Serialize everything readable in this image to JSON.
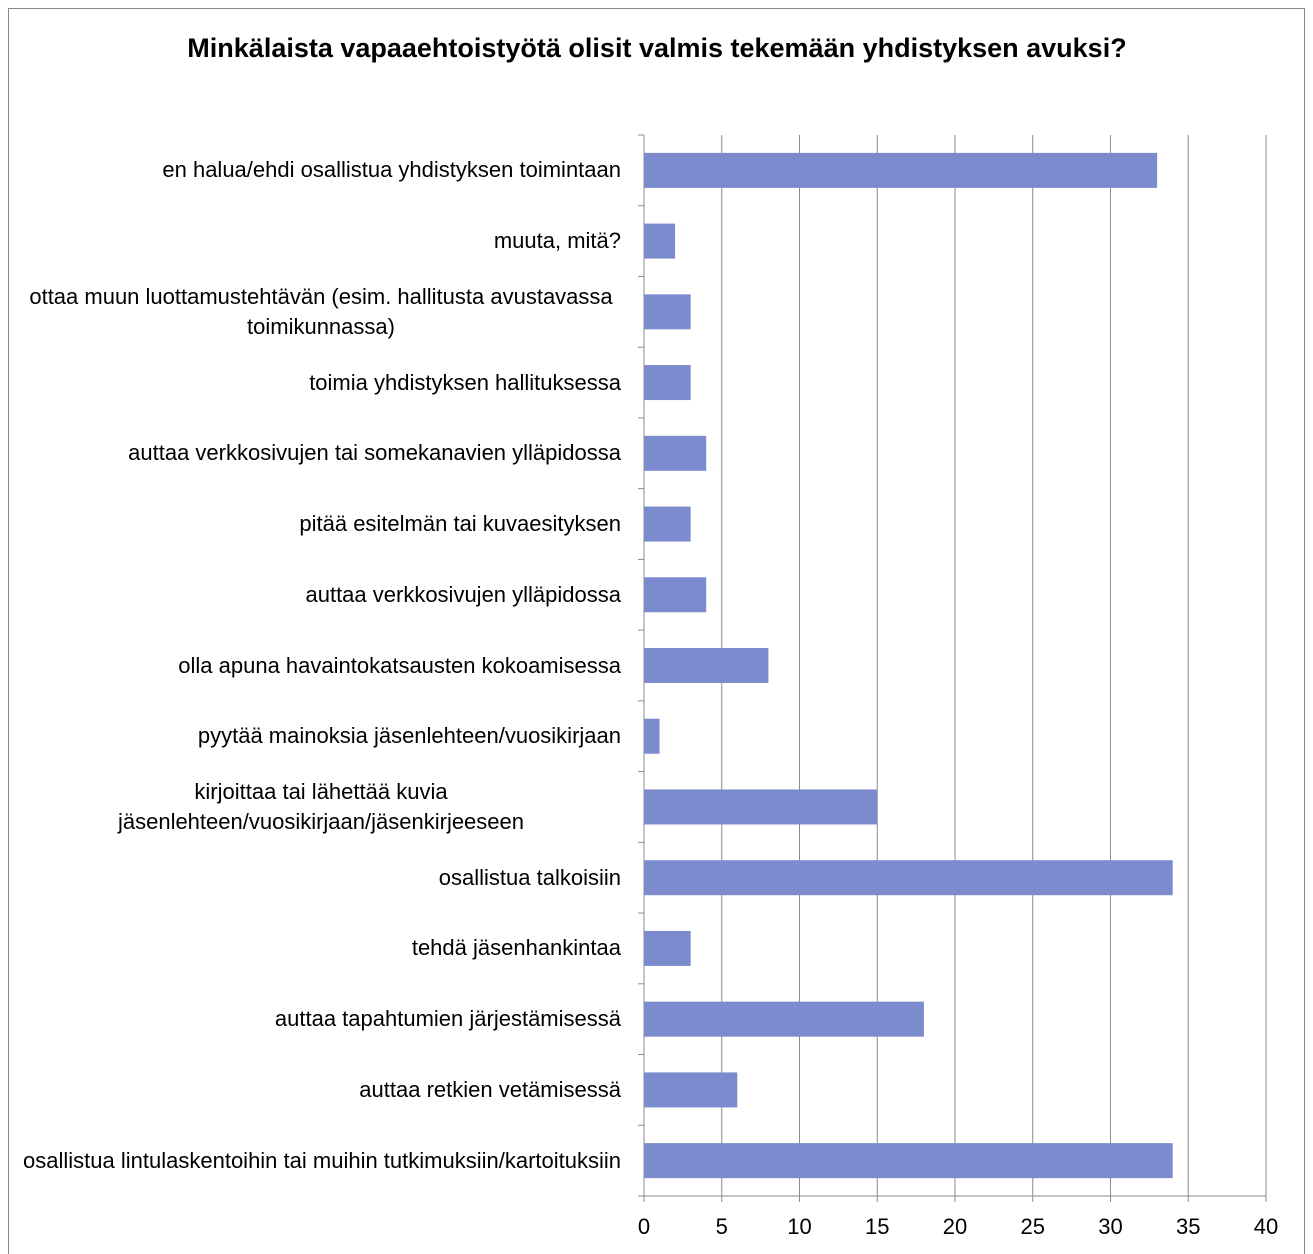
{
  "chart_data": {
    "type": "bar",
    "orientation": "horizontal",
    "title": "Minkälaista vapaaehtoistyötä olisit valmis tekemään yhdistyksen avuksi?",
    "categories": [
      "en halua/ehdi osallistua yhdistyksen toimintaan",
      "muuta, mitä?",
      "ottaa muun luottamustehtävän (esim. hallitusta avustavassa toimikunnassa)",
      "toimia yhdistyksen hallituksessa",
      "auttaa verkkosivujen tai somekanavien ylläpidossa",
      "pitää esitelmän tai kuvaesityksen",
      "auttaa verkkosivujen ylläpidossa",
      "olla apuna havaintokatsausten kokoamisessa",
      "pyytää mainoksia jäsenlehteen/vuosikirjaan",
      "kirjoittaa tai lähettää kuvia jäsenlehteen/vuosikirjaan/jäsenkirjeeseen",
      "osallistua talkoisiin",
      "tehdä jäsenhankintaa",
      "auttaa tapahtumien järjestämisessä",
      "auttaa retkien vetämisessä",
      "osallistua lintulaskentoihin tai muihin tutkimuksiin/kartoituksiin"
    ],
    "values": [
      33,
      2,
      3,
      3,
      4,
      3,
      4,
      8,
      1,
      15,
      34,
      3,
      18,
      6,
      34
    ],
    "color": "#7b8bce",
    "xlim": [
      0,
      40
    ],
    "xticks": [
      0,
      5,
      10,
      15,
      20,
      25,
      30,
      35,
      40
    ],
    "grid": true
  }
}
